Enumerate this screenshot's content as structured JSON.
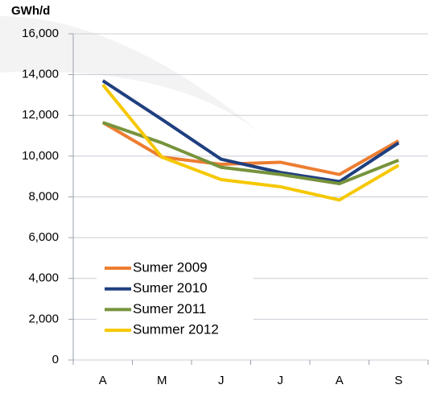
{
  "chart_data": {
    "type": "line",
    "y_label": "GWh/d",
    "categories": [
      "A",
      "M",
      "J",
      "J",
      "A",
      "S"
    ],
    "series": [
      {
        "name": "Sumer 2009",
        "color": "#ed7d31",
        "values": [
          11650,
          9950,
          9600,
          9700,
          9100,
          10750
        ]
      },
      {
        "name": "Sumer 2010",
        "color": "#1f3f7f",
        "values": [
          13700,
          11800,
          9850,
          9200,
          8750,
          10650
        ]
      },
      {
        "name": "Sumer 2011",
        "color": "#77933c",
        "values": [
          11650,
          10650,
          9450,
          9100,
          8650,
          9800
        ]
      },
      {
        "name": "Summer 2012",
        "color": "#f5c800",
        "values": [
          13500,
          9950,
          8850,
          8500,
          7850,
          9550
        ]
      }
    ],
    "ylim": [
      0,
      16000
    ],
    "yticks": [
      0,
      {
        "value": 2000,
        "label": "2,000"
      },
      {
        "value": 4000,
        "label": "4,000"
      },
      {
        "value": 6000,
        "label": "6,000"
      },
      {
        "value": 8000,
        "label": "8,000"
      },
      {
        "value": 10000,
        "label": "10,000"
      },
      {
        "value": 12000,
        "label": "12,000"
      },
      {
        "value": 14000,
        "label": "14,000"
      },
      {
        "value": 16000,
        "label": "16,000"
      }
    ],
    "grid": true
  }
}
